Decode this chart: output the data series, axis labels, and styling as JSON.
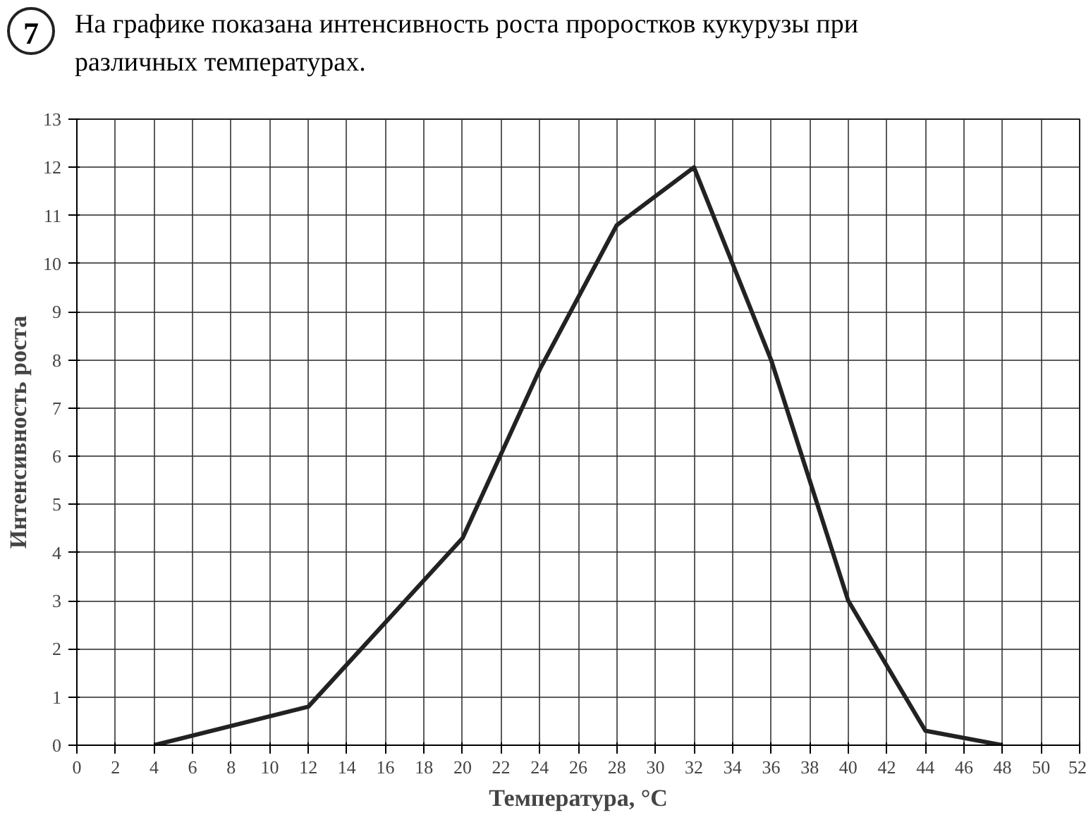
{
  "chart_data": {
    "type": "line",
    "title": "На графике показана интенсивность роста проростков кукурузы при различных температурах.",
    "annotations": [
      "7"
    ],
    "xlabel": "Температура, °C",
    "ylabel": "Интенсивность роста",
    "x": [
      4,
      12,
      20,
      24,
      28,
      32,
      36,
      40,
      44,
      48
    ],
    "series": [
      {
        "color": "#222222",
        "values": [
          0,
          0.8,
          4.3,
          7.8,
          10.8,
          12,
          8,
          3,
          0.3,
          0
        ]
      }
    ],
    "xlim": [
      0,
      52
    ],
    "ylim": [
      0,
      13
    ],
    "xticks": [
      0,
      2,
      4,
      6,
      8,
      10,
      12,
      14,
      16,
      18,
      20,
      22,
      24,
      26,
      28,
      30,
      32,
      34,
      36,
      38,
      40,
      42,
      44,
      46,
      48,
      50,
      52
    ],
    "yticks": [
      0,
      1,
      2,
      3,
      4,
      5,
      6,
      7,
      8,
      9,
      10,
      11,
      12,
      13
    ],
    "grid": true,
    "marker": "none",
    "line_style": "solid"
  }
}
